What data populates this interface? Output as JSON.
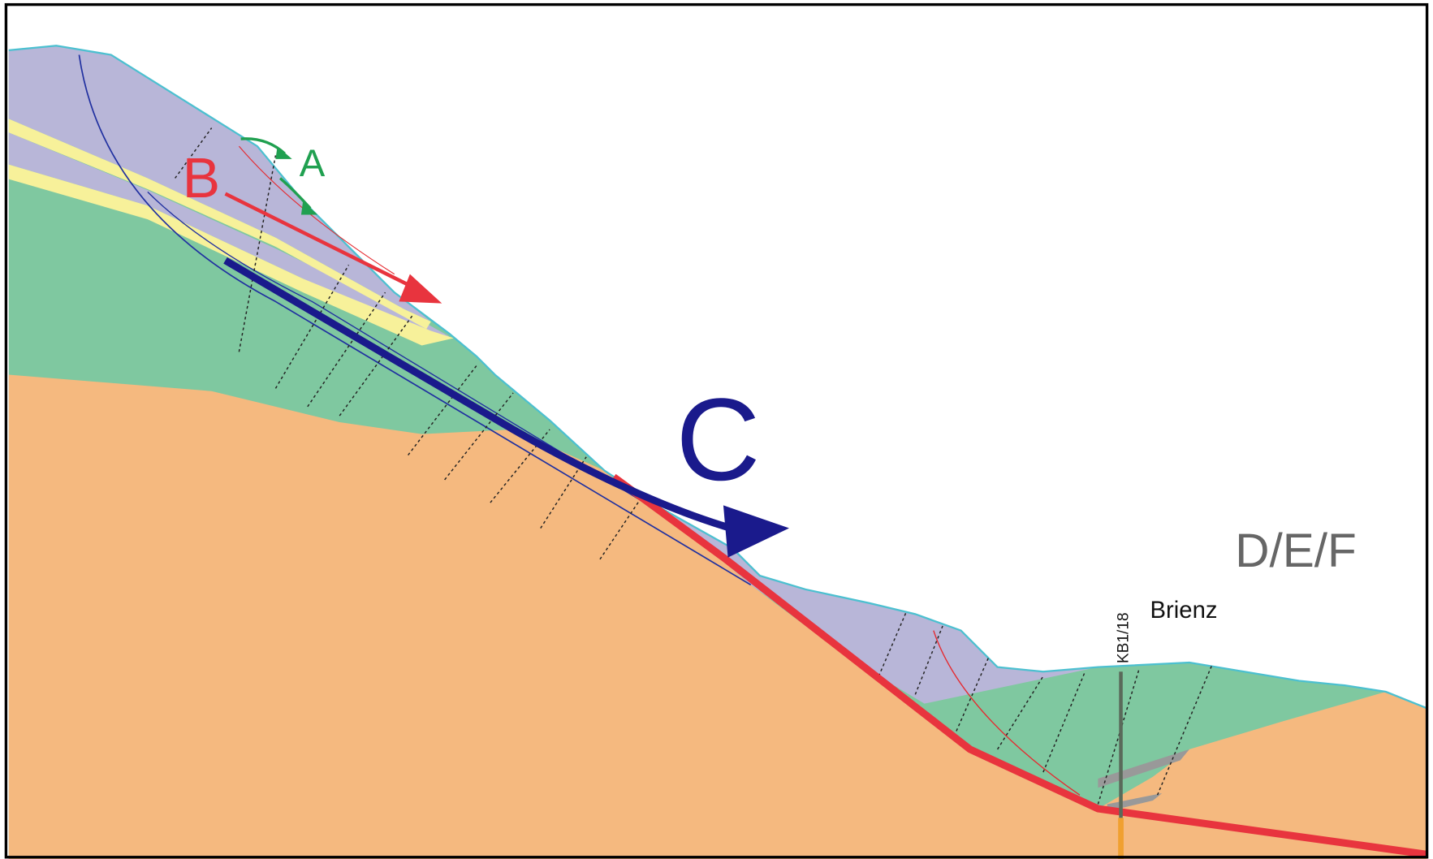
{
  "labels": {
    "a": "A",
    "b": "B",
    "c": "C",
    "def": "D/E/F",
    "brienz": "Brienz",
    "borehole": "KB1/18"
  }
}
